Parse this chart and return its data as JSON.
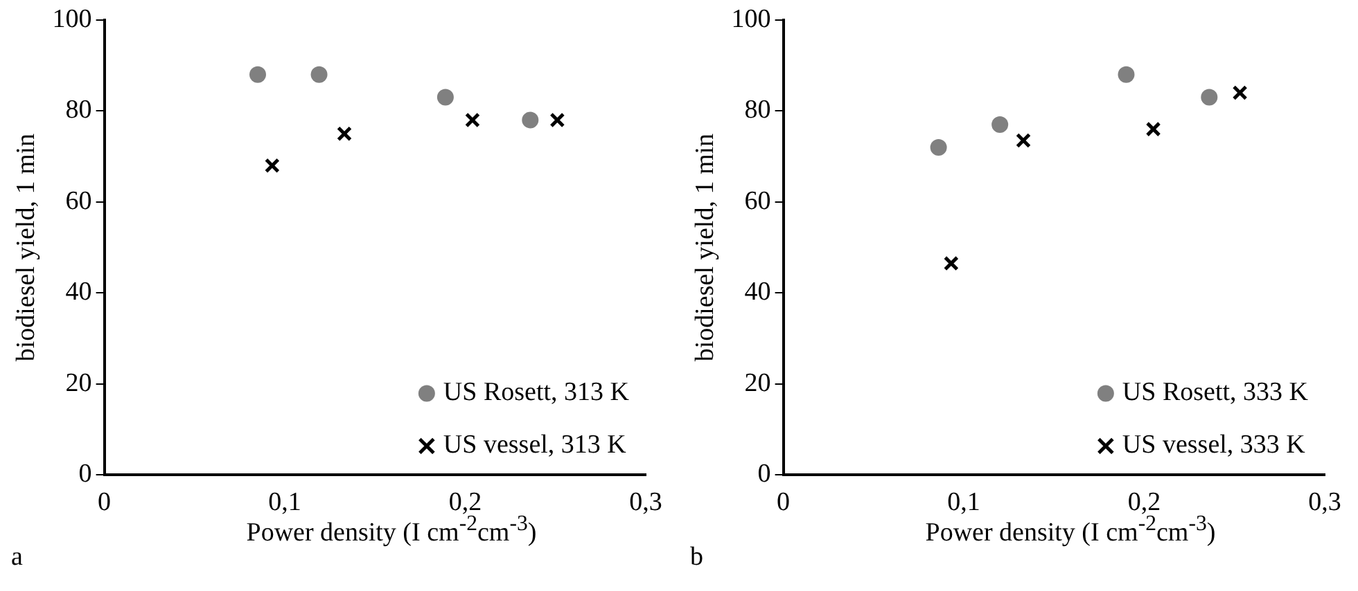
{
  "chart_data": [
    {
      "type": "scatter",
      "xlabel": "Power density (I cm$^{-2}$cm$^{-3}$)",
      "ylabel": "biodiesel yield, 1 min",
      "annotations": [
        "a"
      ],
      "xlim": [
        0,
        0.3
      ],
      "xticks": [
        {
          "value": 0,
          "label": "0"
        },
        {
          "value": 0.1,
          "label": "0,1"
        },
        {
          "value": 0.2,
          "label": "0,2"
        },
        {
          "value": 0.3,
          "label": "0,3"
        }
      ],
      "ylim": [
        0,
        100
      ],
      "yticks": [
        0,
        20,
        40,
        60,
        80,
        100
      ],
      "grid": false,
      "legend": "bottom right",
      "series": [
        {
          "name": "US Rosett, 313 K",
          "color": "#808080",
          "marker": "circle",
          "x": [
            0.085,
            0.119,
            0.189,
            0.236
          ],
          "values": [
            88,
            88,
            83,
            78
          ]
        },
        {
          "name": "US vessel, 313 K",
          "color": "#000000",
          "marker": "cross",
          "x": [
            0.093,
            0.133,
            0.204,
            0.251
          ],
          "values": [
            68,
            75,
            78,
            78
          ]
        }
      ]
    },
    {
      "type": "scatter",
      "xlabel": "Power density (I cm$^{-2}$cm$^{-3}$)",
      "ylabel": "biodiesel yield, 1 min",
      "annotations": [
        "b"
      ],
      "xlim": [
        0,
        0.3
      ],
      "xticks": [
        {
          "value": 0,
          "label": "0"
        },
        {
          "value": 0.1,
          "label": "0,1"
        },
        {
          "value": 0.2,
          "label": "0,2"
        },
        {
          "value": 0.3,
          "label": "0,3"
        }
      ],
      "ylim": [
        0,
        100
      ],
      "yticks": [
        0,
        20,
        40,
        60,
        80,
        100
      ],
      "grid": false,
      "legend": "bottom right",
      "series": [
        {
          "name": "US Rosett, 333 K",
          "color": "#808080",
          "marker": "circle",
          "x": [
            0.086,
            0.12,
            0.19,
            0.236
          ],
          "values": [
            72,
            77,
            88,
            83
          ]
        },
        {
          "name": "US vessel, 333 K",
          "color": "#000000",
          "marker": "cross",
          "x": [
            0.093,
            0.133,
            0.205,
            0.253
          ],
          "values": [
            46.5,
            73.5,
            76,
            84
          ]
        }
      ]
    }
  ]
}
